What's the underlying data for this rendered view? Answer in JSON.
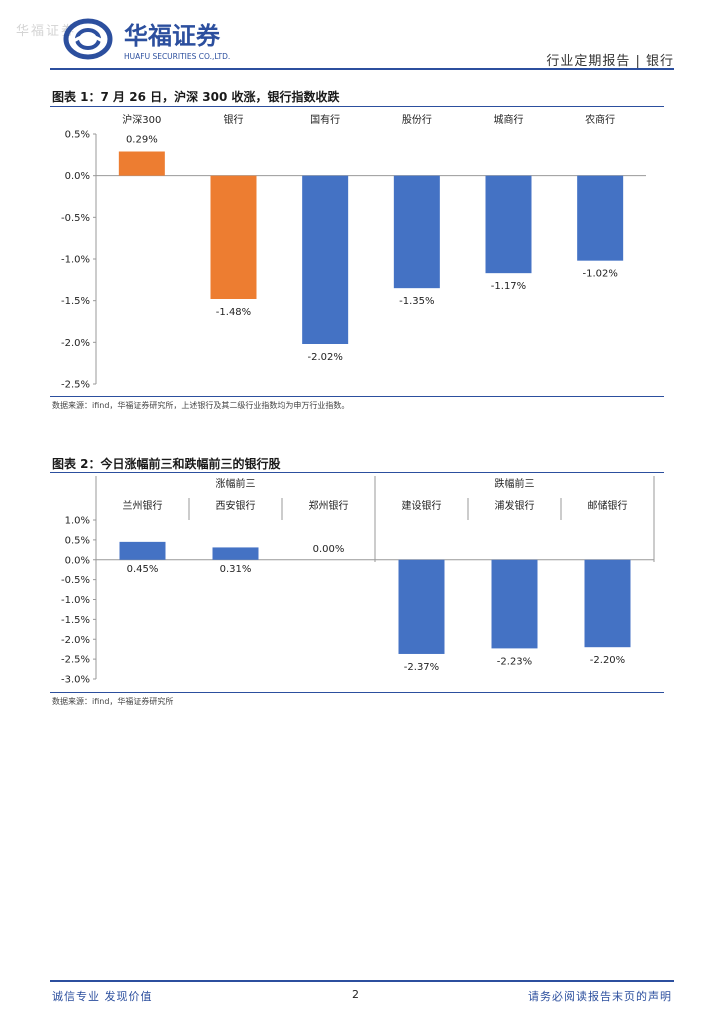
{
  "header": {
    "watermark": "华福证券",
    "logo_cn": "华福证券",
    "logo_en": "HUAFU SECURITIES CO.,LTD.",
    "report_type": "行业定期报告 | 银行"
  },
  "colors": {
    "orange": "#ed7d31",
    "blue": "#4472c4",
    "brand": "#2c4f9e"
  },
  "figure1": {
    "title": "图表 1：7 月 26 日，沪深 300 收涨，银行指数收跌",
    "source": "数据来源：ifind，华福证券研究所，上述银行及其二级行业指数均为申万行业指数。"
  },
  "figure2": {
    "title": "图表 2：今日涨幅前三和跌幅前三的银行股",
    "source": "数据来源：ifind，华福证券研究所"
  },
  "chart_data": [
    {
      "type": "bar",
      "categories": [
        "沪深300",
        "银行",
        "国有行",
        "股份行",
        "城商行",
        "农商行"
      ],
      "values": [
        0.29,
        -1.48,
        -2.02,
        -1.35,
        -1.17,
        -1.02
      ],
      "data_labels": [
        "0.29%",
        "-1.48%",
        "-2.02%",
        "-1.35%",
        "-1.17%",
        "-1.02%"
      ],
      "bar_colors": [
        "#ed7d31",
        "#ed7d31",
        "#4472c4",
        "#4472c4",
        "#4472c4",
        "#4472c4"
      ],
      "y_ticks": [
        "0.5%",
        "0.0%",
        "-0.5%",
        "-1.0%",
        "-1.5%",
        "-2.0%",
        "-2.5%"
      ],
      "ylim": [
        -2.5,
        0.5
      ],
      "grid": false,
      "legend": "none"
    },
    {
      "type": "bar",
      "group_labels": [
        "涨幅前三",
        "跌幅前三"
      ],
      "categories": [
        "兰州银行",
        "西安银行",
        "郑州银行",
        "建设银行",
        "浦发银行",
        "邮储银行"
      ],
      "values": [
        0.45,
        0.31,
        0.0,
        -2.37,
        -2.23,
        -2.2
      ],
      "data_labels": [
        "0.45%",
        "0.31%",
        "0.00%",
        "-2.37%",
        "-2.23%",
        "-2.20%"
      ],
      "bar_colors": [
        "#4472c4",
        "#4472c4",
        "#4472c4",
        "#4472c4",
        "#4472c4",
        "#4472c4"
      ],
      "y_ticks": [
        "1.0%",
        "0.5%",
        "0.0%",
        "-0.5%",
        "-1.0%",
        "-1.5%",
        "-2.0%",
        "-2.5%",
        "-3.0%"
      ],
      "ylim": [
        -3.0,
        1.0
      ],
      "grid": false,
      "legend": "none"
    }
  ],
  "footer": {
    "left": "诚信专业  发现价值",
    "page_number": "2",
    "right": "请务必阅读报告末页的声明"
  }
}
